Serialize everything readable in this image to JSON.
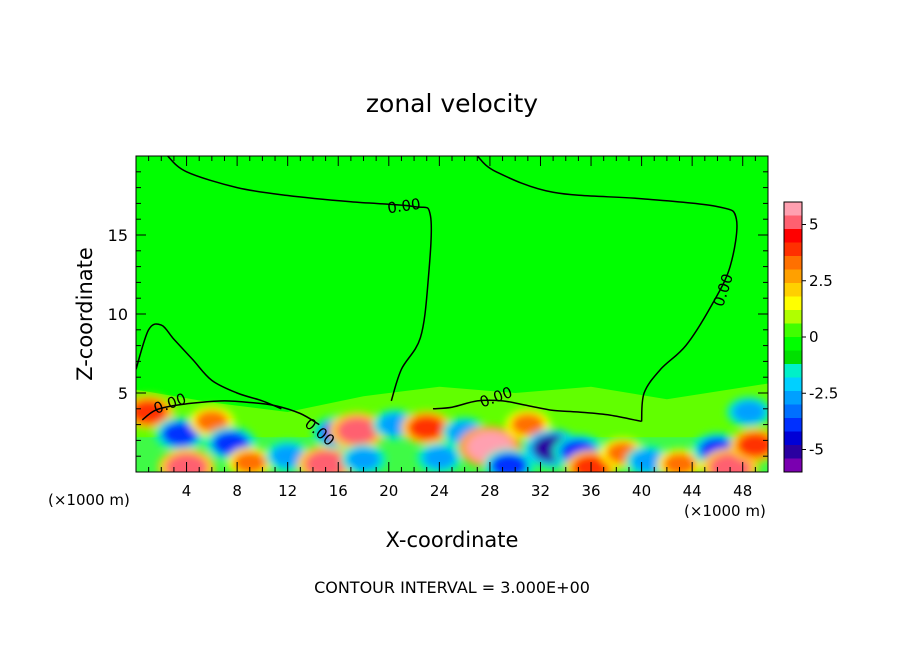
{
  "chart_data": {
    "type": "heatmap",
    "title": "zonal velocity",
    "xlabel": "X-coordinate",
    "ylabel": "Z-coordinate",
    "x_unit_left": "(×1000 m)",
    "x_unit_right": "(×1000 m)",
    "footer": "CONTOUR INTERVAL = 3.000E+00",
    "xlim": [
      0,
      50
    ],
    "ylim": [
      0,
      20
    ],
    "x_ticks": [
      4,
      8,
      12,
      16,
      20,
      24,
      28,
      32,
      36,
      40,
      44,
      48
    ],
    "y_ticks": [
      5,
      10,
      15
    ],
    "contour_interval": 3.0,
    "contour_label": "0.00",
    "colorbar": {
      "range": [
        -6,
        6
      ],
      "ticks": [
        {
          "value": 5,
          "label": "5"
        },
        {
          "value": 2.5,
          "label": "2.5"
        },
        {
          "value": 0,
          "label": "0"
        },
        {
          "value": -2.5,
          "label": "-2.5"
        },
        {
          "value": -5,
          "label": "-5"
        }
      ],
      "colors": [
        "#7a00b0",
        "#2a00a0",
        "#0000d6",
        "#0030ff",
        "#0070ff",
        "#00a0ff",
        "#00d0ff",
        "#00f0c8",
        "#00e000",
        "#00ff00",
        "#40ff00",
        "#b0ff00",
        "#ffff00",
        "#ffd000",
        "#ffa000",
        "#ff7000",
        "#ff3000",
        "#ff0000",
        "#ff6070",
        "#ffa0b0"
      ]
    },
    "features": [
      {
        "x": 1,
        "z": 3.8,
        "u": 4
      },
      {
        "x": 3.5,
        "z": 2.4,
        "u": -4
      },
      {
        "x": 4,
        "z": 0.3,
        "u": 5
      },
      {
        "x": 6,
        "z": 3.2,
        "u": 3
      },
      {
        "x": 7.5,
        "z": 1.8,
        "u": -4
      },
      {
        "x": 9,
        "z": 0.6,
        "u": 3
      },
      {
        "x": 12,
        "z": 1.0,
        "u": -3
      },
      {
        "x": 15,
        "z": 0.5,
        "u": 5
      },
      {
        "x": 16,
        "z": 2.5,
        "u": -4
      },
      {
        "x": 17.5,
        "z": 2.6,
        "u": 5
      },
      {
        "x": 18,
        "z": 0.8,
        "u": -3
      },
      {
        "x": 20.5,
        "z": 3.0,
        "u": -3
      },
      {
        "x": 23,
        "z": 2.8,
        "u": 4
      },
      {
        "x": 24,
        "z": 0.9,
        "u": -3
      },
      {
        "x": 26,
        "z": 2.5,
        "u": -3
      },
      {
        "x": 28,
        "z": 1.6,
        "u": 6
      },
      {
        "x": 29.5,
        "z": 0.4,
        "u": -4
      },
      {
        "x": 31,
        "z": 3.0,
        "u": 3
      },
      {
        "x": 33,
        "z": 1.5,
        "u": -5
      },
      {
        "x": 35,
        "z": 1.3,
        "u": -4
      },
      {
        "x": 36,
        "z": 0.3,
        "u": 4
      },
      {
        "x": 38.5,
        "z": 1.2,
        "u": 3
      },
      {
        "x": 40.5,
        "z": 0.7,
        "u": -3
      },
      {
        "x": 43,
        "z": 0.5,
        "u": 3
      },
      {
        "x": 46,
        "z": 1.4,
        "u": -4
      },
      {
        "x": 47,
        "z": 0.3,
        "u": 5
      },
      {
        "x": 49,
        "z": 1.7,
        "u": 4
      },
      {
        "x": 48.5,
        "z": 3.8,
        "u": -3
      }
    ],
    "zero_contour_paths": [
      [
        [
          2.5,
          20
        ],
        [
          4,
          19
        ],
        [
          8,
          18
        ],
        [
          12,
          17.5
        ],
        [
          17,
          17.1
        ],
        [
          22,
          16.8
        ],
        [
          23.3,
          16.2
        ],
        [
          23.1,
          12
        ],
        [
          22.5,
          8.5
        ],
        [
          21,
          6.5
        ],
        [
          20.2,
          4.5
        ]
      ],
      [
        [
          27,
          20
        ],
        [
          28.5,
          19
        ],
        [
          33,
          17.7
        ],
        [
          40,
          17.3
        ],
        [
          46,
          16.8
        ],
        [
          47.5,
          16
        ],
        [
          47,
          13
        ],
        [
          45.5,
          10.5
        ],
        [
          43.5,
          8
        ],
        [
          41.5,
          6.5
        ],
        [
          40.2,
          5
        ],
        [
          40,
          3.2
        ]
      ],
      [
        [
          0,
          6.5
        ],
        [
          1,
          9
        ],
        [
          2,
          9.3
        ],
        [
          3,
          8.4
        ],
        [
          4.5,
          7.1
        ],
        [
          6,
          5.8
        ],
        [
          8,
          5
        ],
        [
          10,
          4.5
        ],
        [
          11.5,
          4
        ]
      ],
      [
        [
          0.5,
          3.3
        ],
        [
          1.5,
          3.9
        ],
        [
          3,
          4.2
        ],
        [
          5,
          4.4
        ],
        [
          7,
          4.5
        ],
        [
          9,
          4.4
        ],
        [
          11,
          4.2
        ],
        [
          13,
          3.7
        ],
        [
          14.5,
          3
        ]
      ],
      [
        [
          23.5,
          4
        ],
        [
          25,
          4.1
        ],
        [
          27,
          4.5
        ],
        [
          29,
          4.5
        ],
        [
          31,
          4.2
        ],
        [
          33,
          3.9
        ],
        [
          35,
          3.8
        ],
        [
          37.5,
          3.6
        ],
        [
          40,
          3.2
        ]
      ]
    ]
  }
}
